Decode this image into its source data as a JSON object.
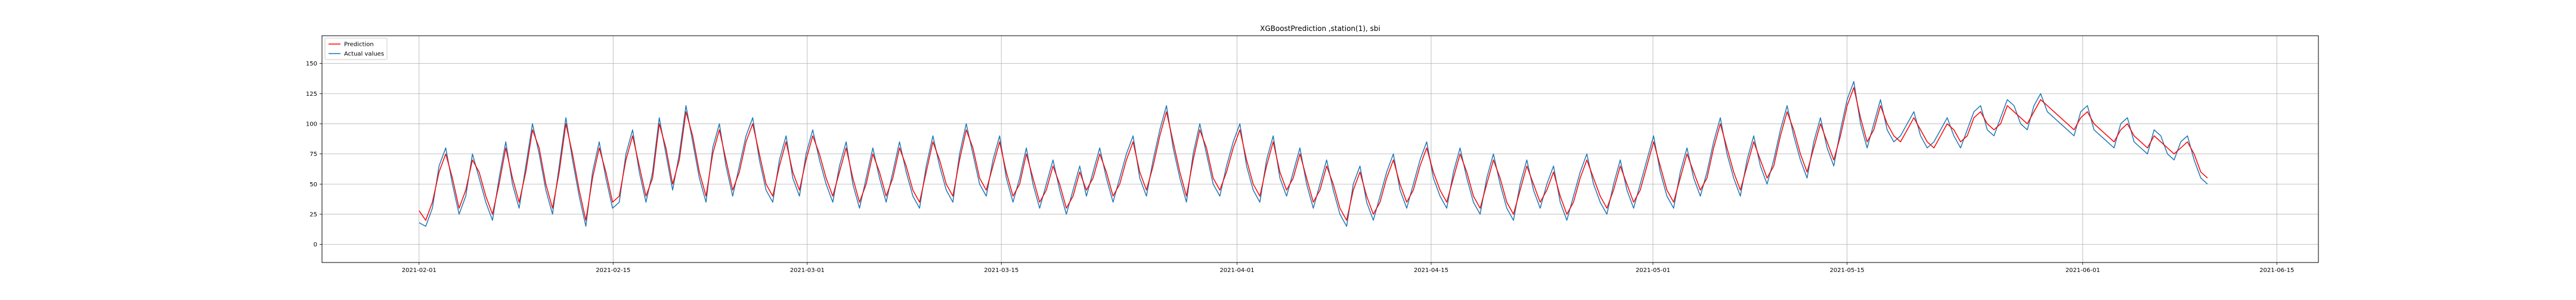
{
  "chart_data": {
    "type": "line",
    "title": "XGBoostPrediction ,station(1), sbi",
    "xlabel": "",
    "ylabel": "",
    "x_ticks": [
      "2021-02-01",
      "2021-02-15",
      "2021-03-01",
      "2021-03-15",
      "2021-04-01",
      "2021-04-15",
      "2021-05-01",
      "2021-05-15",
      "2021-06-01",
      "2021-06-15"
    ],
    "x_range": [
      "2021-01-25",
      "2021-06-18"
    ],
    "data_range": [
      "2021-02-01",
      "2021-06-10"
    ],
    "y_ticks": [
      0,
      25,
      50,
      75,
      100,
      125,
      150
    ],
    "ylim": [
      -15,
      173
    ],
    "grid": true,
    "legend_position": "upper-left",
    "series": [
      {
        "name": "Prediction",
        "color": "#ff0000",
        "values": [
          28,
          20,
          35,
          60,
          75,
          55,
          30,
          45,
          70,
          60,
          40,
          25,
          50,
          80,
          55,
          35,
          60,
          95,
          80,
          50,
          30,
          60,
          100,
          75,
          45,
          20,
          55,
          80,
          60,
          35,
          40,
          70,
          90,
          65,
          40,
          55,
          100,
          80,
          50,
          70,
          110,
          90,
          60,
          40,
          75,
          95,
          70,
          45,
          60,
          85,
          100,
          75,
          50,
          40,
          65,
          85,
          60,
          45,
          70,
          90,
          75,
          55,
          40,
          60,
          80,
          55,
          35,
          50,
          75,
          60,
          40,
          55,
          80,
          65,
          45,
          35,
          60,
          85,
          70,
          50,
          40,
          70,
          95,
          80,
          55,
          45,
          65,
          85,
          60,
          40,
          50,
          75,
          55,
          35,
          45,
          65,
          50,
          30,
          40,
          60,
          45,
          55,
          75,
          60,
          40,
          50,
          70,
          85,
          60,
          45,
          65,
          90,
          110,
          85,
          60,
          40,
          70,
          95,
          80,
          55,
          45,
          60,
          80,
          95,
          70,
          50,
          40,
          65,
          85,
          60,
          45,
          55,
          75,
          55,
          35,
          45,
          65,
          50,
          30,
          20,
          45,
          60,
          40,
          25,
          35,
          55,
          70,
          50,
          35,
          45,
          65,
          80,
          60,
          45,
          35,
          55,
          75,
          60,
          40,
          30,
          50,
          70,
          55,
          35,
          25,
          45,
          65,
          50,
          35,
          45,
          60,
          40,
          25,
          35,
          55,
          70,
          55,
          40,
          30,
          45,
          65,
          50,
          35,
          45,
          65,
          85,
          65,
          45,
          35,
          55,
          75,
          60,
          45,
          55,
          80,
          100,
          80,
          60,
          45,
          65,
          85,
          70,
          55,
          65,
          90,
          110,
          95,
          75,
          60,
          80,
          100,
          85,
          70,
          90,
          115,
          130,
          105,
          85,
          95,
          115,
          100,
          90,
          85,
          95,
          105,
          95,
          85,
          80,
          90,
          100,
          95,
          85,
          90,
          105,
          110,
          100,
          95,
          100,
          115,
          110,
          105,
          100,
          110,
          120,
          115,
          110,
          105,
          100,
          95,
          105,
          110,
          100,
          95,
          90,
          85,
          95,
          100,
          90,
          85,
          80,
          90,
          85,
          80,
          75,
          80,
          85,
          75,
          60,
          55
        ]
      },
      {
        "name": "Actual values",
        "color": "#1f77b4",
        "values": [
          18,
          15,
          30,
          65,
          80,
          50,
          25,
          40,
          75,
          55,
          35,
          20,
          55,
          85,
          50,
          30,
          65,
          100,
          75,
          45,
          25,
          65,
          105,
          70,
          40,
          15,
          60,
          85,
          55,
          30,
          35,
          75,
          95,
          60,
          35,
          60,
          105,
          75,
          45,
          75,
          115,
          85,
          55,
          35,
          80,
          100,
          65,
          40,
          65,
          90,
          105,
          70,
          45,
          35,
          70,
          90,
          55,
          40,
          75,
          95,
          70,
          50,
          35,
          65,
          85,
          50,
          30,
          55,
          80,
          55,
          35,
          60,
          85,
          60,
          40,
          30,
          65,
          90,
          65,
          45,
          35,
          75,
          100,
          75,
          50,
          40,
          70,
          90,
          55,
          35,
          55,
          80,
          50,
          30,
          50,
          70,
          45,
          25,
          45,
          65,
          40,
          60,
          80,
          55,
          35,
          55,
          75,
          90,
          55,
          40,
          70,
          95,
          115,
          80,
          55,
          35,
          75,
          100,
          75,
          50,
          40,
          65,
          85,
          100,
          65,
          45,
          35,
          70,
          90,
          55,
          40,
          60,
          80,
          50,
          30,
          50,
          70,
          45,
          25,
          15,
          50,
          65,
          35,
          20,
          40,
          60,
          75,
          45,
          30,
          50,
          70,
          85,
          55,
          40,
          30,
          60,
          80,
          55,
          35,
          25,
          55,
          75,
          50,
          30,
          20,
          50,
          70,
          45,
          30,
          50,
          65,
          35,
          20,
          40,
          60,
          75,
          50,
          35,
          25,
          50,
          70,
          45,
          30,
          50,
          70,
          90,
          60,
          40,
          30,
          60,
          80,
          55,
          40,
          60,
          85,
          105,
          75,
          55,
          40,
          70,
          90,
          65,
          50,
          70,
          95,
          115,
          90,
          70,
          55,
          85,
          105,
          80,
          65,
          95,
          120,
          135,
          100,
          80,
          100,
          120,
          95,
          85,
          90,
          100,
          110,
          90,
          80,
          85,
          95,
          105,
          90,
          80,
          95,
          110,
          115,
          95,
          90,
          105,
          120,
          115,
          100,
          95,
          115,
          125,
          110,
          105,
          100,
          95,
          90,
          110,
          115,
          95,
          90,
          85,
          80,
          100,
          105,
          85,
          80,
          75,
          95,
          90,
          75,
          70,
          85,
          90,
          70,
          55,
          50
        ]
      }
    ]
  }
}
